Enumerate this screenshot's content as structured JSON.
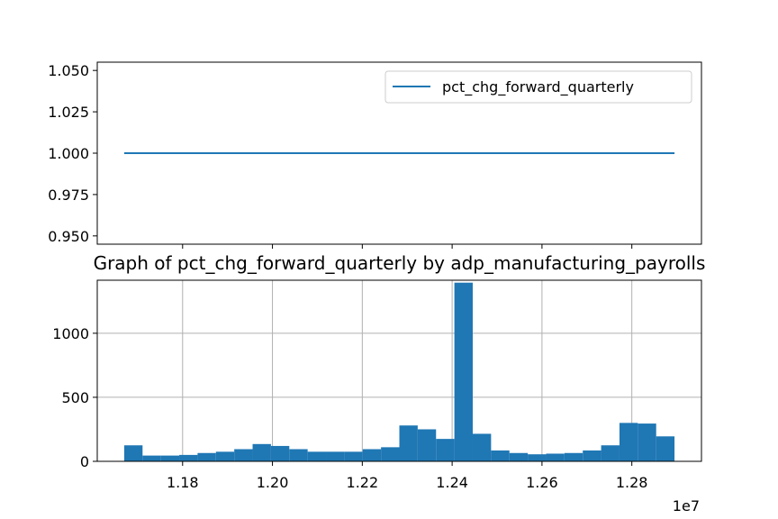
{
  "chart_data": [
    {
      "type": "line",
      "title": "",
      "xlabel": "",
      "ylabel": "",
      "ylim": [
        0.945,
        1.055
      ],
      "yticks": [
        "1.050",
        "1.025",
        "1.000",
        "0.975",
        "0.950"
      ],
      "ytick_values": [
        1.05,
        1.025,
        1.0,
        0.975,
        0.95
      ],
      "x_shared_ticks": [
        11800000,
        12000000,
        12200000,
        12400000,
        12600000,
        12800000
      ],
      "grid": false,
      "legend": "upper right",
      "series": [
        {
          "name": "pct_chg_forward_quarterly",
          "color": "#1f77b4",
          "x": [
            11670000,
            12895000
          ],
          "y": [
            1.0,
            1.0
          ]
        }
      ]
    },
    {
      "type": "bar",
      "subtype": "histogram",
      "title": "Graph of pct_chg_forward_quarterly by adp_manufacturing_payrolls",
      "xlabel": "",
      "ylabel": "",
      "xlim": [
        11610000,
        12955000
      ],
      "ylim": [
        0,
        1400
      ],
      "xticks": [
        "1.18",
        "1.20",
        "1.22",
        "1.24",
        "1.26",
        "1.28"
      ],
      "xtick_values": [
        11800000,
        12000000,
        12200000,
        12400000,
        12600000,
        12800000
      ],
      "x_offset_label": "1e7",
      "yticks": [
        "0",
        "500",
        "1000"
      ],
      "ytick_values": [
        0,
        500,
        1000
      ],
      "grid": true,
      "color": "#1f77b4",
      "bin_edges": [
        11670000,
        11710833,
        11751667,
        11792500,
        11833333,
        11874167,
        11915000,
        11955833,
        11996667,
        12037500,
        12078333,
        12119167,
        12160000,
        12200833,
        12241667,
        12282500,
        12323333,
        12364167,
        12405000,
        12445833,
        12486667,
        12527500,
        12568333,
        12609167,
        12650000,
        12690833,
        12731667,
        12772500,
        12813333,
        12854167,
        12895000
      ],
      "values": [
        125,
        45,
        45,
        50,
        65,
        75,
        95,
        135,
        120,
        95,
        75,
        75,
        75,
        95,
        110,
        280,
        250,
        175,
        1395,
        215,
        85,
        65,
        55,
        60,
        65,
        85,
        125,
        300,
        295,
        195
      ]
    }
  ]
}
